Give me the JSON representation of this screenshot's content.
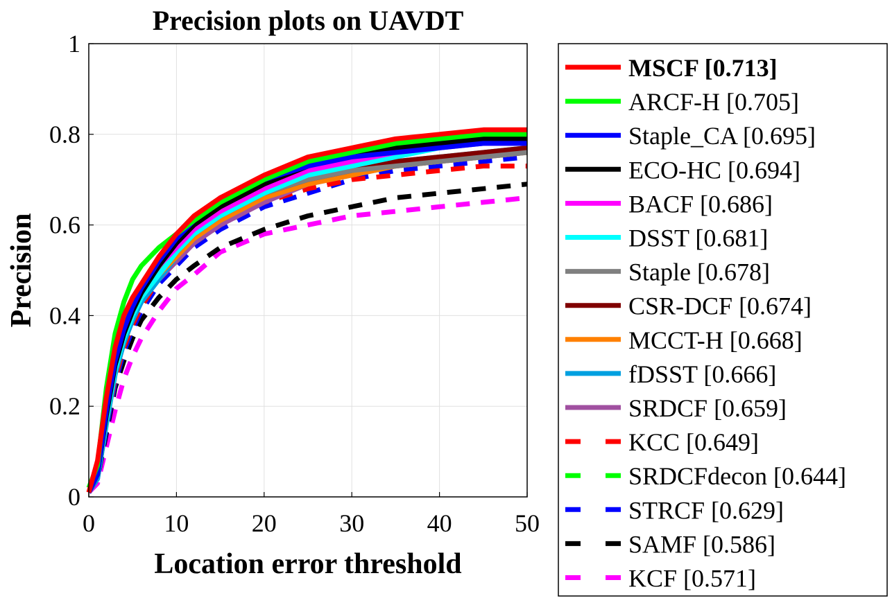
{
  "chart_data": {
    "type": "line",
    "title": "Precision plots on UAVDT",
    "xlabel": "Location error threshold",
    "ylabel": "Precision",
    "xlim": [
      0,
      50
    ],
    "ylim": [
      0,
      1
    ],
    "xticks": [
      "0",
      "10",
      "20",
      "30",
      "40",
      "50"
    ],
    "yticks": [
      "0",
      "0.2",
      "0.4",
      "0.6",
      "0.8",
      "1"
    ],
    "grid": true,
    "legend_position": "outside-right",
    "series": [
      {
        "name": "MSCF [0.713]",
        "color": "#ff0000",
        "dash": false,
        "bold": true,
        "x": [
          0,
          1,
          2,
          3,
          4,
          5,
          6,
          8,
          10,
          12,
          15,
          20,
          25,
          30,
          35,
          40,
          45,
          50
        ],
        "y": [
          0.01,
          0.08,
          0.22,
          0.33,
          0.4,
          0.44,
          0.47,
          0.53,
          0.58,
          0.62,
          0.66,
          0.71,
          0.75,
          0.77,
          0.79,
          0.8,
          0.81,
          0.81
        ]
      },
      {
        "name": "ARCF-H [0.705]",
        "color": "#00ff00",
        "dash": false,
        "x": [
          0,
          1,
          2,
          3,
          4,
          5,
          6,
          8,
          10,
          12,
          15,
          20,
          25,
          30,
          35,
          40,
          45,
          50
        ],
        "y": [
          0.02,
          0.07,
          0.24,
          0.36,
          0.43,
          0.48,
          0.51,
          0.55,
          0.58,
          0.61,
          0.65,
          0.7,
          0.74,
          0.76,
          0.78,
          0.79,
          0.8,
          0.8
        ]
      },
      {
        "name": "Staple_CA [0.695]",
        "color": "#0000ff",
        "dash": false,
        "x": [
          0,
          1,
          2,
          3,
          4,
          5,
          6,
          8,
          10,
          12,
          15,
          20,
          25,
          30,
          35,
          40,
          45,
          50
        ],
        "y": [
          0.01,
          0.05,
          0.19,
          0.3,
          0.37,
          0.42,
          0.46,
          0.52,
          0.57,
          0.61,
          0.66,
          0.7,
          0.73,
          0.75,
          0.76,
          0.77,
          0.78,
          0.78
        ]
      },
      {
        "name": "ECO-HC [0.694]",
        "color": "#000000",
        "dash": false,
        "x": [
          0,
          1,
          2,
          3,
          4,
          5,
          6,
          8,
          10,
          12,
          15,
          20,
          25,
          30,
          35,
          40,
          45,
          50
        ],
        "y": [
          0.01,
          0.05,
          0.18,
          0.29,
          0.36,
          0.41,
          0.45,
          0.51,
          0.56,
          0.6,
          0.64,
          0.69,
          0.73,
          0.76,
          0.77,
          0.78,
          0.79,
          0.79
        ]
      },
      {
        "name": "BACF [0.686]",
        "color": "#ff00ff",
        "dash": false,
        "x": [
          0,
          1,
          2,
          3,
          4,
          5,
          6,
          8,
          10,
          12,
          15,
          20,
          25,
          30,
          35,
          40,
          45,
          50
        ],
        "y": [
          0.01,
          0.05,
          0.19,
          0.3,
          0.37,
          0.42,
          0.46,
          0.51,
          0.55,
          0.59,
          0.63,
          0.68,
          0.72,
          0.74,
          0.76,
          0.77,
          0.78,
          0.78
        ]
      },
      {
        "name": "DSST [0.681]",
        "color": "#00ffff",
        "dash": false,
        "x": [
          0,
          1,
          2,
          3,
          4,
          5,
          6,
          8,
          10,
          12,
          15,
          20,
          25,
          30,
          35,
          40,
          45,
          50
        ],
        "y": [
          0.01,
          0.05,
          0.17,
          0.28,
          0.35,
          0.4,
          0.44,
          0.49,
          0.54,
          0.58,
          0.62,
          0.67,
          0.71,
          0.73,
          0.75,
          0.77,
          0.78,
          0.79
        ]
      },
      {
        "name": "Staple [0.678]",
        "color": "#808080",
        "dash": false,
        "x": [
          0,
          1,
          2,
          3,
          4,
          5,
          6,
          8,
          10,
          12,
          15,
          20,
          25,
          30,
          35,
          40,
          45,
          50
        ],
        "y": [
          0.01,
          0.05,
          0.18,
          0.29,
          0.36,
          0.41,
          0.45,
          0.5,
          0.55,
          0.59,
          0.63,
          0.67,
          0.7,
          0.72,
          0.73,
          0.74,
          0.75,
          0.76
        ]
      },
      {
        "name": "CSR-DCF [0.674]",
        "color": "#800000",
        "dash": false,
        "x": [
          0,
          1,
          2,
          3,
          4,
          5,
          6,
          8,
          10,
          12,
          15,
          20,
          25,
          30,
          35,
          40,
          45,
          50
        ],
        "y": [
          0.01,
          0.05,
          0.18,
          0.29,
          0.36,
          0.41,
          0.45,
          0.5,
          0.54,
          0.58,
          0.62,
          0.67,
          0.7,
          0.72,
          0.74,
          0.75,
          0.76,
          0.77
        ]
      },
      {
        "name": "MCCT-H [0.668]",
        "color": "#ff8000",
        "dash": false,
        "x": [
          0,
          1,
          2,
          3,
          4,
          5,
          6,
          8,
          10,
          12,
          15,
          20,
          25,
          30,
          35,
          40,
          45,
          50
        ],
        "y": [
          0.01,
          0.05,
          0.18,
          0.29,
          0.36,
          0.41,
          0.44,
          0.49,
          0.53,
          0.57,
          0.61,
          0.66,
          0.69,
          0.71,
          0.73,
          0.74,
          0.75,
          0.76
        ]
      },
      {
        "name": "fDSST [0.666]",
        "color": "#00a0e0",
        "dash": false,
        "x": [
          0,
          1,
          2,
          3,
          4,
          5,
          6,
          8,
          10,
          12,
          15,
          20,
          25,
          30,
          35,
          40,
          45,
          50
        ],
        "y": [
          0.01,
          0.04,
          0.16,
          0.27,
          0.34,
          0.39,
          0.43,
          0.48,
          0.53,
          0.57,
          0.61,
          0.66,
          0.7,
          0.72,
          0.74,
          0.75,
          0.76,
          0.77
        ]
      },
      {
        "name": "SRDCF [0.659]",
        "color": "#a050a0",
        "dash": false,
        "x": [
          0,
          1,
          2,
          3,
          4,
          5,
          6,
          8,
          10,
          12,
          15,
          20,
          25,
          30,
          35,
          40,
          45,
          50
        ],
        "y": [
          0.01,
          0.04,
          0.16,
          0.27,
          0.34,
          0.39,
          0.43,
          0.48,
          0.52,
          0.56,
          0.6,
          0.65,
          0.69,
          0.71,
          0.73,
          0.74,
          0.75,
          0.76
        ]
      },
      {
        "name": "KCC [0.649]",
        "color": "#ff0000",
        "dash": true,
        "x": [
          0,
          1,
          2,
          3,
          4,
          5,
          6,
          8,
          10,
          12,
          15,
          20,
          25,
          30,
          35,
          40,
          45,
          50
        ],
        "y": [
          0.01,
          0.04,
          0.16,
          0.26,
          0.33,
          0.38,
          0.42,
          0.48,
          0.52,
          0.56,
          0.6,
          0.65,
          0.68,
          0.7,
          0.71,
          0.72,
          0.73,
          0.73
        ]
      },
      {
        "name": "SRDCFdecon [0.644]",
        "color": "#00ff00",
        "dash": true,
        "x": [
          0,
          1,
          2,
          3,
          4,
          5,
          6,
          8,
          10,
          12,
          15,
          20,
          25,
          30,
          35,
          40,
          45,
          50
        ],
        "y": [
          0.01,
          0.04,
          0.16,
          0.26,
          0.33,
          0.38,
          0.42,
          0.48,
          0.52,
          0.56,
          0.6,
          0.65,
          0.68,
          0.71,
          0.73,
          0.74,
          0.75,
          0.76
        ]
      },
      {
        "name": "STRCF [0.629]",
        "color": "#0000ff",
        "dash": true,
        "x": [
          0,
          1,
          2,
          3,
          4,
          5,
          6,
          8,
          10,
          12,
          15,
          20,
          25,
          30,
          35,
          40,
          45,
          50
        ],
        "y": [
          0.01,
          0.04,
          0.15,
          0.25,
          0.32,
          0.37,
          0.41,
          0.47,
          0.51,
          0.55,
          0.59,
          0.64,
          0.67,
          0.7,
          0.72,
          0.73,
          0.74,
          0.75
        ]
      },
      {
        "name": "SAMF [0.586]",
        "color": "#000000",
        "dash": true,
        "x": [
          0,
          1,
          2,
          3,
          4,
          5,
          6,
          8,
          10,
          12,
          15,
          20,
          25,
          30,
          35,
          40,
          45,
          50
        ],
        "y": [
          0.01,
          0.04,
          0.14,
          0.24,
          0.3,
          0.35,
          0.39,
          0.44,
          0.48,
          0.51,
          0.55,
          0.59,
          0.62,
          0.64,
          0.66,
          0.67,
          0.68,
          0.69
        ]
      },
      {
        "name": "KCF [0.571]",
        "color": "#ff00ff",
        "dash": true,
        "x": [
          0,
          1,
          2,
          3,
          4,
          5,
          6,
          8,
          10,
          12,
          15,
          20,
          25,
          30,
          35,
          40,
          45,
          50
        ],
        "y": [
          0.01,
          0.03,
          0.11,
          0.19,
          0.26,
          0.31,
          0.35,
          0.41,
          0.46,
          0.49,
          0.54,
          0.58,
          0.6,
          0.62,
          0.63,
          0.64,
          0.65,
          0.66
        ]
      }
    ]
  }
}
